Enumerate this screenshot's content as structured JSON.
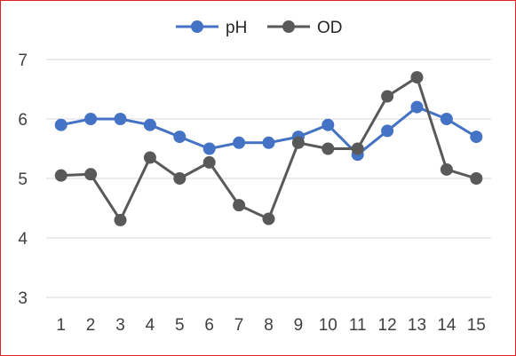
{
  "chart_data": {
    "type": "line",
    "title": "",
    "xlabel": "",
    "ylabel": "",
    "categories": [
      "1",
      "2",
      "3",
      "4",
      "5",
      "6",
      "7",
      "8",
      "9",
      "10",
      "11",
      "12",
      "13",
      "14",
      "15"
    ],
    "ylim": [
      3,
      7
    ],
    "yticks": [
      "3",
      "4",
      "5",
      "6",
      "7"
    ],
    "grid": "horizontal",
    "legend_position": "top",
    "series": [
      {
        "name": "pH",
        "color": "#4472c4",
        "values": [
          5.9,
          6.0,
          6.0,
          5.9,
          5.7,
          5.5,
          5.6,
          5.6,
          5.7,
          5.9,
          5.4,
          5.8,
          6.2,
          6.0,
          5.7
        ]
      },
      {
        "name": "OD",
        "color": "#595959",
        "values": [
          5.05,
          5.07,
          4.3,
          5.35,
          5.0,
          5.27,
          4.55,
          4.32,
          5.6,
          5.5,
          5.5,
          6.38,
          6.7,
          5.15,
          5.0
        ]
      }
    ]
  }
}
